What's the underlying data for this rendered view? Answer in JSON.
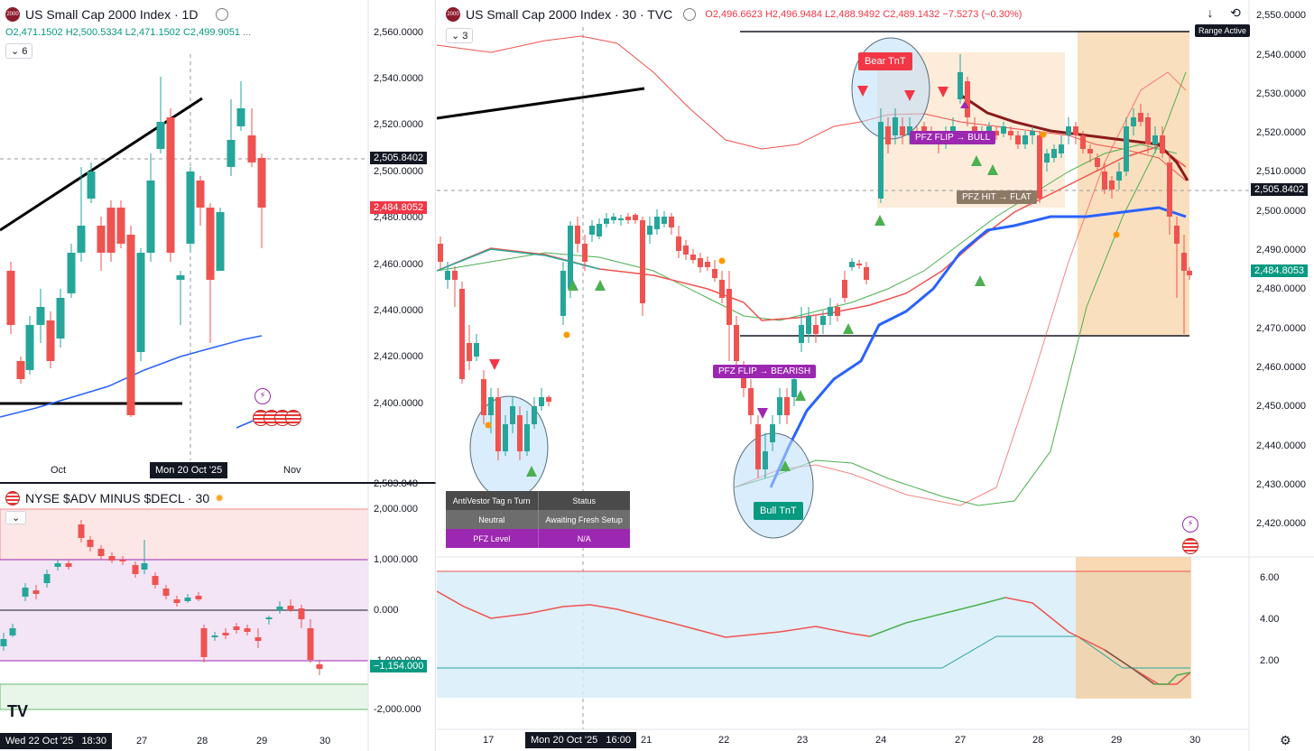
{
  "left_chart": {
    "symbol_icon": "2000",
    "title": "US Small Cap 2000 Index · 1D",
    "ohlc": {
      "o": "O2,471.1502",
      "h": "H2,500.5334",
      "l": "L2,471.1502",
      "c": "C2,499.9051",
      "more": "..."
    },
    "indicator_count": "6",
    "price_ticks": [
      "2,560.0000",
      "2,540.0000",
      "2,520.0000",
      "2,500.0000",
      "2,480.0000",
      "2,460.0000",
      "2,440.0000",
      "2,420.0000",
      "2,400.0000"
    ],
    "crosshair_price": "2,505.8402",
    "last_price": "2,484.8052",
    "date_labels": [
      "Oct",
      "Nov"
    ],
    "crosshair_date": "Mon 20 Oct '25"
  },
  "breadth_pane": {
    "title": "NYSE $ADV MINUS $DECL · 30",
    "top_cut_label": "2,583.848",
    "ticks": [
      "2,000.000",
      "1,000.000",
      "0.000",
      "-1,000.000",
      "-2,000.000"
    ],
    "last_value": "−1,154.000",
    "date_labels": [
      "27",
      "28",
      "29",
      "30"
    ],
    "crosshair_date": "Wed 22 Oct '25   18:30",
    "logo": "TV"
  },
  "main_chart": {
    "symbol_icon": "2000",
    "title": "US Small Cap 2000 Index · 30 · TVC",
    "ohlc": {
      "o": "O2,496.6623",
      "h": "H2,496.9484",
      "l": "L2,488.9492",
      "c": "C2,489.1432",
      "chg": "−7.5273 (−0.30%)"
    },
    "indicator_count": "3",
    "range_badge": "Range Active",
    "price_ticks": [
      "2,550.0000",
      "2,540.0000",
      "2,530.0000",
      "2,520.0000",
      "2,510.0000",
      "2,500.0000",
      "2,490.0000",
      "2,480.0000",
      "2,470.0000",
      "2,460.0000",
      "2,450.0000",
      "2,440.0000",
      "2,430.0000",
      "2,420.0000"
    ],
    "crosshair_price": "2,505.8402",
    "last_price": "2,484.8053",
    "osc_ticks": [
      "6.00",
      "4.00",
      "2.00"
    ],
    "date_labels": [
      "17",
      "21",
      "22",
      "23",
      "24",
      "27",
      "28",
      "29",
      "30"
    ],
    "crosshair_date": "Mon 20 Oct '25   16:00",
    "annotations": {
      "bear_tnt": "Bear TnT",
      "bull_tnt": "Bull TnT",
      "pfz_bull": "PFZ FLIP → BULL",
      "pfz_bear": "PFZ FLIP → BEARISH",
      "pfz_hit": "PFZ HIT → FLAT"
    },
    "status_table": {
      "h1": "AntiVestor Tag n Turn",
      "h2": "Status",
      "r1c1": "Neutral",
      "r1c2": "Awaiting Fresh Setup",
      "r2c1": "PFZ Level",
      "r2c2": "N/A"
    }
  },
  "colors": {
    "up": "#26a69a",
    "down": "#ef5350",
    "blue_ma": "#2962ff",
    "purple": "#9c27b0",
    "orange_zone": "#f9d9b3"
  },
  "icons": [
    "download-icon",
    "fullscreen-icon",
    "settings-icon",
    "flag-us-icon",
    "lightning-icon",
    "chevron-down-icon",
    "eye-icon"
  ]
}
